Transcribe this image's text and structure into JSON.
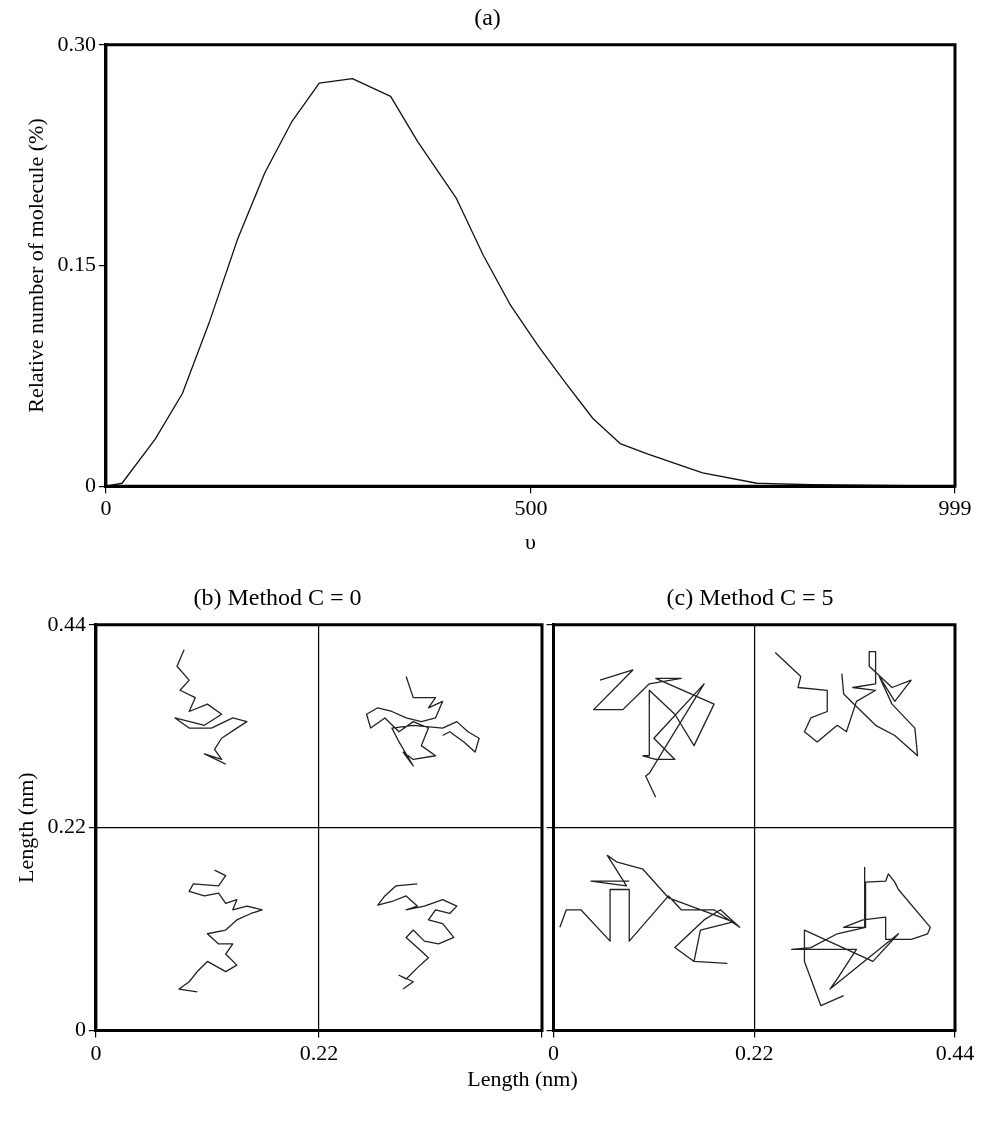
{
  "chart_data": [
    {
      "type": "line",
      "title": "(a)",
      "xlabel": "υ",
      "ylabel": "Relative number of molecule (%)",
      "xlim": [
        0,
        999
      ],
      "ylim": [
        0,
        0.3
      ],
      "xticks": [
        0,
        500,
        999
      ],
      "yticks": [
        0,
        0.15,
        {
          "value": 0.3,
          "label": "0.30"
        }
      ],
      "x": [
        0,
        19,
        58,
        90,
        122,
        155,
        187,
        219,
        251,
        290,
        335,
        367,
        412,
        444,
        476,
        509,
        541,
        573,
        605,
        637,
        702,
        766,
        831,
        998
      ],
      "series": [
        {
          "color": "#111111",
          "values": [
            0,
            0.002,
            0.032,
            0.063,
            0.112,
            0.168,
            0.213,
            0.248,
            0.274,
            0.277,
            0.265,
            0.234,
            0.196,
            0.157,
            0.123,
            0.095,
            0.07,
            0.046,
            0.029,
            0.022,
            0.009,
            0.002,
            0.001,
            0
          ]
        }
      ]
    },
    {
      "type": "line",
      "title": "(b) Method C = 0",
      "xlabel": "Length (nm)",
      "ylabel": "Length (nm)",
      "xlim": [
        0,
        0.44
      ],
      "ylim": [
        0,
        0.44
      ],
      "xticks": [
        0,
        0.22,
        {
          "value": 0.44,
          "label": null
        }
      ],
      "yticks": [
        0,
        0.22,
        0.44
      ],
      "grid": true,
      "series": [
        {
          "color": "#222222",
          "x": [
            0.087,
            0.08,
            0.092,
            0.083,
            0.098,
            0.092,
            0.11,
            0.124,
            0.107,
            0.078,
            0.092,
            0.114,
            0.135,
            0.149,
            0.139,
            0.124,
            0.117,
            0.124,
            0.107,
            0.128
          ],
          "values": [
            0.413,
            0.395,
            0.38,
            0.369,
            0.361,
            0.346,
            0.354,
            0.343,
            0.331,
            0.339,
            0.328,
            0.328,
            0.339,
            0.335,
            0.328,
            0.317,
            0.305,
            0.294,
            0.3,
            0.289
          ]
        },
        {
          "color": "#222222",
          "x": [
            0.306,
            0.313,
            0.335,
            0.328,
            0.342,
            0.335,
            0.321,
            0.306,
            0.292,
            0.278,
            0.267,
            0.271,
            0.285,
            0.299,
            0.313,
            0.328,
            0.321,
            0.335,
            0.313,
            0.303,
            0.313,
            0.299,
            0.292,
            0.313,
            0.342,
            0.356,
            0.367,
            0.378,
            0.374,
            0.363,
            0.349,
            0.342
          ],
          "values": [
            0.384,
            0.361,
            0.361,
            0.35,
            0.357,
            0.339,
            0.335,
            0.339,
            0.346,
            0.35,
            0.343,
            0.328,
            0.339,
            0.324,
            0.335,
            0.328,
            0.309,
            0.298,
            0.294,
            0.302,
            0.287,
            0.313,
            0.328,
            0.331,
            0.328,
            0.335,
            0.324,
            0.317,
            0.302,
            0.313,
            0.324,
            0.32
          ]
        },
        {
          "color": "#222222",
          "x": [
            0.117,
            0.128,
            0.121,
            0.096,
            0.092,
            0.107,
            0.121,
            0.128,
            0.139,
            0.135,
            0.149,
            0.164,
            0.153,
            0.139,
            0.128,
            0.11,
            0.121,
            0.135,
            0.128,
            0.139,
            0.128,
            0.11,
            0.1,
            0.092,
            0.082,
            0.1
          ],
          "values": [
            0.174,
            0.168,
            0.157,
            0.159,
            0.151,
            0.146,
            0.149,
            0.138,
            0.142,
            0.131,
            0.135,
            0.131,
            0.127,
            0.12,
            0.109,
            0.105,
            0.094,
            0.094,
            0.083,
            0.071,
            0.064,
            0.075,
            0.064,
            0.053,
            0.045,
            0.042
          ]
        },
        {
          "color": "#222222",
          "x": [
            0.317,
            0.296,
            0.285,
            0.278,
            0.292,
            0.306,
            0.317,
            0.306,
            0.324,
            0.342,
            0.356,
            0.349,
            0.335,
            0.328,
            0.342,
            0.353,
            0.338,
            0.324,
            0.313,
            0.306,
            0.317,
            0.328,
            0.317,
            0.306,
            0.299,
            0.313,
            0.303
          ],
          "values": [
            0.159,
            0.157,
            0.146,
            0.136,
            0.14,
            0.146,
            0.135,
            0.131,
            0.135,
            0.142,
            0.135,
            0.127,
            0.131,
            0.12,
            0.116,
            0.101,
            0.094,
            0.097,
            0.109,
            0.101,
            0.09,
            0.079,
            0.068,
            0.056,
            0.06,
            0.053,
            0.045
          ]
        }
      ]
    },
    {
      "type": "line",
      "title": "(c) Method C = 5",
      "xlim": [
        0,
        0.44
      ],
      "ylim": [
        0,
        0.44
      ],
      "xticks": [
        0,
        0.22,
        0.44
      ],
      "yticks": [
        0,
        0.22,
        0.44
      ],
      "grid": true,
      "tick_labels": "x",
      "series": [
        {
          "color": "#222222",
          "x": [
            0.051,
            0.087,
            0.044,
            0.076,
            0.105,
            0.14,
            0.112,
            0.176,
            0.154,
            0.133,
            0.105,
            0.105,
            0.098,
            0.112,
            0.133,
            0.11,
            0.165,
            0.105,
            0.101,
            0.112
          ],
          "values": [
            0.38,
            0.391,
            0.348,
            0.348,
            0.376,
            0.382,
            0.382,
            0.354,
            0.309,
            0.343,
            0.369,
            0.298,
            0.298,
            0.294,
            0.294,
            0.317,
            0.376,
            0.279,
            0.276,
            0.253
          ]
        },
        {
          "color": "#222222",
          "x": [
            0.243,
            0.271,
            0.268,
            0.3,
            0.3,
            0.282,
            0.275,
            0.289,
            0.311,
            0.321,
            0.332,
            0.353,
            0.328,
            0.353,
            0.353,
            0.346,
            0.346,
            0.371,
            0.392,
            0.374,
            0.357,
            0.371,
            0.396,
            0.399,
            0.374,
            0.353,
            0.318,
            0.316
          ],
          "values": [
            0.41,
            0.384,
            0.372,
            0.369,
            0.346,
            0.339,
            0.324,
            0.313,
            0.331,
            0.324,
            0.357,
            0.369,
            0.372,
            0.376,
            0.411,
            0.411,
            0.395,
            0.372,
            0.38,
            0.357,
            0.384,
            0.354,
            0.328,
            0.298,
            0.32,
            0.331,
            0.365,
            0.387
          ]
        },
        {
          "color": "#222222",
          "x": [
            0.007,
            0.014,
            0.03,
            0.062,
            0.062,
            0.083,
            0.083,
            0.126,
            0.14,
            0.176,
            0.204,
            0.183,
            0.165,
            0.133,
            0.154,
            0.19,
            0.154,
            0.161,
            0.197,
            0.126,
            0.098,
            0.069,
            0.059,
            0.08,
            0.041,
            0.083
          ],
          "values": [
            0.112,
            0.131,
            0.131,
            0.097,
            0.153,
            0.153,
            0.097,
            0.146,
            0.131,
            0.131,
            0.112,
            0.131,
            0.12,
            0.09,
            0.075,
            0.073,
            0.075,
            0.109,
            0.118,
            0.144,
            0.175,
            0.183,
            0.19,
            0.157,
            0.162,
            0.162
          ]
        },
        {
          "color": "#222222",
          "x": [
            0.341,
            0.341,
            0.318,
            0.339,
            0.364,
            0.364,
            0.392,
            0.41,
            0.413,
            0.378,
            0.374,
            0.367,
            0.364,
            0.342,
            0.342,
            0.311,
            0.282,
            0.261,
            0.332,
            0.311,
            0.303,
            0.378,
            0.35,
            0.275,
            0.275,
            0.293,
            0.318
          ],
          "values": [
            0.177,
            0.112,
            0.112,
            0.12,
            0.123,
            0.099,
            0.099,
            0.105,
            0.112,
            0.153,
            0.161,
            0.17,
            0.162,
            0.161,
            0.112,
            0.105,
            0.09,
            0.088,
            0.088,
            0.056,
            0.045,
            0.105,
            0.075,
            0.109,
            0.075,
            0.027,
            0.038
          ]
        }
      ]
    }
  ]
}
